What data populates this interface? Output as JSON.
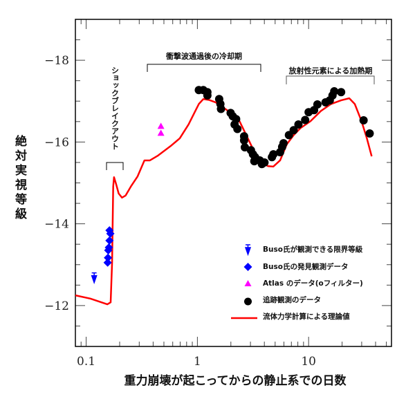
{
  "chart_data": {
    "type": "scatter",
    "xlabel": "重力崩壊が起こってからの静止系での日数",
    "ylabel": "絶対実視等級",
    "xscale": "log",
    "xlim": [
      0.08,
      55.6
    ],
    "ylim": [
      -11,
      -19
    ],
    "y_inverted": true,
    "x_ticks": [
      0.1,
      1,
      10
    ],
    "x_tick_labels": [
      "0.1",
      "1",
      "10"
    ],
    "y_ticks": [
      -18,
      -16,
      -14,
      -12
    ],
    "y_tick_labels": [
      "−18",
      "−16",
      "−14",
      "−12"
    ],
    "grid": false,
    "legend_position": "bottom-right",
    "annotations": [
      {
        "text": "ショックブレイクアウト",
        "x_range": [
          0.16,
          0.22
        ],
        "orientation": "vertical"
      },
      {
        "text": "衝撃波通過後の冷却期",
        "x_range": [
          0.33,
          3.6
        ]
      },
      {
        "text": "放射性元素による加熱期",
        "x_range": [
          6.0,
          36
        ]
      }
    ],
    "series": [
      {
        "name": "Buso氏が観測できる限界等級",
        "marker": "down-arrow",
        "color": "#0000ff",
        "points": [
          [
            0.118,
            -12.68
          ]
        ]
      },
      {
        "name": "Buso氏の発見観測データ",
        "marker": "diamond",
        "color": "#0000ff",
        "points": [
          [
            0.162,
            -13.84
          ],
          [
            0.165,
            -13.76
          ],
          [
            0.162,
            -13.59
          ],
          [
            0.16,
            -13.42
          ],
          [
            0.158,
            -13.35
          ],
          [
            0.157,
            -13.17
          ],
          [
            0.156,
            -13.05
          ]
        ]
      },
      {
        "name": "Atlas のデータ(oフィルター)",
        "marker": "triangle",
        "color": "#ff00ff",
        "points": [
          [
            0.47,
            -16.39
          ],
          [
            0.47,
            -16.22
          ]
        ]
      },
      {
        "name": "追跡観測のデータ",
        "marker": "circle",
        "color": "#000000",
        "points": [
          [
            1.03,
            -17.27
          ],
          [
            1.13,
            -17.27
          ],
          [
            1.23,
            -17.22
          ],
          [
            1.23,
            -17.14
          ],
          [
            1.57,
            -17.05
          ],
          [
            1.61,
            -16.93
          ],
          [
            1.63,
            -16.81
          ],
          [
            1.99,
            -16.71
          ],
          [
            2.08,
            -16.63
          ],
          [
            2.23,
            -16.56
          ],
          [
            2.16,
            -16.43
          ],
          [
            2.29,
            -16.32
          ],
          [
            2.63,
            -16.14
          ],
          [
            2.63,
            -16.04
          ],
          [
            2.67,
            -15.87
          ],
          [
            3.03,
            -15.8
          ],
          [
            3.16,
            -15.7
          ],
          [
            3.3,
            -15.63
          ],
          [
            3.25,
            -15.53
          ],
          [
            3.64,
            -15.55
          ],
          [
            4.01,
            -15.5
          ],
          [
            3.8,
            -15.46
          ],
          [
            4.68,
            -15.63
          ],
          [
            4.82,
            -15.7
          ],
          [
            5.54,
            -15.75
          ],
          [
            5.78,
            -15.88
          ],
          [
            5.95,
            -15.97
          ],
          [
            6.65,
            -16.17
          ],
          [
            7.34,
            -16.29
          ],
          [
            8.1,
            -16.43
          ],
          [
            9.31,
            -16.54
          ],
          [
            10.0,
            -16.73
          ],
          [
            11.2,
            -16.78
          ],
          [
            12.0,
            -16.92
          ],
          [
            14.2,
            -16.97
          ],
          [
            15.5,
            -17.02
          ],
          [
            16.4,
            -17.14
          ],
          [
            17.0,
            -17.24
          ],
          [
            19.6,
            -17.22
          ],
          [
            31.2,
            -16.53
          ],
          [
            35.4,
            -16.21
          ]
        ]
      },
      {
        "name": "流体力学計算による理論値",
        "marker": "line",
        "color": "#ff0000",
        "points": [
          [
            0.08,
            -12.25
          ],
          [
            0.109,
            -12.17
          ],
          [
            0.155,
            -12.03
          ],
          [
            0.166,
            -12.08
          ],
          [
            0.171,
            -13.05
          ],
          [
            0.175,
            -14.91
          ],
          [
            0.178,
            -15.14
          ],
          [
            0.185,
            -14.99
          ],
          [
            0.196,
            -14.74
          ],
          [
            0.21,
            -14.64
          ],
          [
            0.226,
            -14.69
          ],
          [
            0.252,
            -14.91
          ],
          [
            0.29,
            -15.16
          ],
          [
            0.334,
            -15.55
          ],
          [
            0.374,
            -15.55
          ],
          [
            0.443,
            -15.67
          ],
          [
            0.586,
            -15.92
          ],
          [
            0.694,
            -16.09
          ],
          [
            0.833,
            -16.43
          ],
          [
            0.958,
            -16.76
          ],
          [
            1.03,
            -16.93
          ],
          [
            1.13,
            -17.05
          ],
          [
            1.27,
            -17.03
          ],
          [
            1.46,
            -16.97
          ],
          [
            1.8,
            -16.8
          ],
          [
            2.08,
            -16.68
          ],
          [
            2.39,
            -16.51
          ],
          [
            2.75,
            -16.17
          ],
          [
            3.16,
            -15.83
          ],
          [
            3.64,
            -15.55
          ],
          [
            4.31,
            -15.41
          ],
          [
            4.82,
            -15.4
          ],
          [
            5.54,
            -15.55
          ],
          [
            6.38,
            -15.95
          ],
          [
            7.34,
            -16.17
          ],
          [
            8.45,
            -16.34
          ],
          [
            10.4,
            -16.51
          ],
          [
            12.9,
            -16.76
          ],
          [
            15.9,
            -16.93
          ],
          [
            19.6,
            -17.02
          ],
          [
            23.2,
            -17.07
          ],
          [
            26.0,
            -16.93
          ],
          [
            29.9,
            -16.51
          ],
          [
            33.4,
            -16.09
          ],
          [
            36.9,
            -15.65
          ]
        ]
      }
    ]
  }
}
